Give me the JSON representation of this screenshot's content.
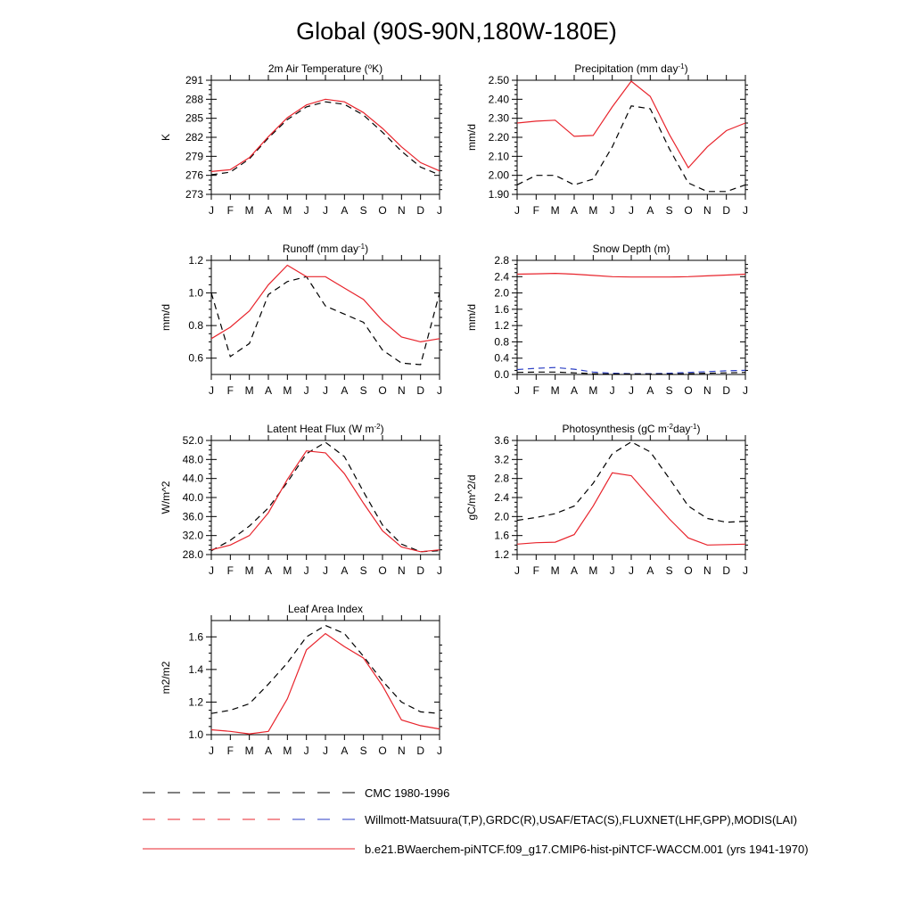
{
  "figure": {
    "title": "Global (90S-90N,180W-180E)"
  },
  "colors": {
    "model": "#e8242c",
    "obs": "#000000",
    "obs_alt": "#2b3ec4"
  },
  "legend": [
    {
      "label": "CMC 1980-1996",
      "style": "dashed-black"
    },
    {
      "label": "Willmott-Matsuura(T,P),GRDC(R),USAF/ETAC(S),FLUXNET(LHF,GPP),MODIS(LAI)",
      "style": "dashed-red-blue"
    },
    {
      "label": "b.e21.BWaerchem-piNTCF.f09_g17.CMIP6-hist-piNTCF-WACCM.001 (yrs 1941-1970)",
      "style": "solid-red"
    }
  ],
  "chart_data": [
    {
      "type": "line",
      "title": "2m Air Temperature (",
      "title_sup": "o",
      "title_after": "K)",
      "ylabel": "K",
      "x": [
        "J",
        "F",
        "M",
        "A",
        "M",
        "J",
        "J",
        "A",
        "S",
        "O",
        "N",
        "D",
        "J"
      ],
      "ylim": [
        273,
        291
      ],
      "yticks": [
        "273",
        "276",
        "279",
        "282",
        "285",
        "288",
        "291"
      ],
      "series": [
        {
          "role": "model",
          "values": [
            276.6,
            276.9,
            278.8,
            282.1,
            285.1,
            287.1,
            288.0,
            287.6,
            285.9,
            283.4,
            280.5,
            278.0,
            276.7
          ]
        },
        {
          "role": "obs",
          "values": [
            276.1,
            276.5,
            278.6,
            281.9,
            284.8,
            286.8,
            287.6,
            287.2,
            285.5,
            282.8,
            279.8,
            277.3,
            276.1
          ]
        }
      ]
    },
    {
      "type": "line",
      "title": "Precipitation (mm day",
      "title_sup": "-1",
      "title_after": ")",
      "ylabel": "mm/d",
      "x": [
        "J",
        "F",
        "M",
        "A",
        "M",
        "J",
        "J",
        "A",
        "S",
        "O",
        "N",
        "D",
        "J"
      ],
      "ylim": [
        1.9,
        2.5
      ],
      "yticks": [
        "1.90",
        "2.00",
        "2.10",
        "2.20",
        "2.30",
        "2.40",
        "2.50"
      ],
      "series": [
        {
          "role": "model",
          "values": [
            2.275,
            2.285,
            2.29,
            2.205,
            2.21,
            2.36,
            2.495,
            2.415,
            2.215,
            2.04,
            2.15,
            2.235,
            2.275
          ]
        },
        {
          "role": "obs",
          "values": [
            1.95,
            2.0,
            2.0,
            1.95,
            1.98,
            2.15,
            2.365,
            2.35,
            2.14,
            1.96,
            1.915,
            1.915,
            1.95
          ]
        }
      ]
    },
    {
      "type": "line",
      "title": "Runoff (mm day",
      "title_sup": "-1",
      "title_after": ")",
      "ylabel": "mm/d",
      "x": [
        "J",
        "F",
        "M",
        "A",
        "M",
        "J",
        "J",
        "A",
        "S",
        "O",
        "N",
        "D",
        "J"
      ],
      "ylim": [
        0.5,
        1.2
      ],
      "yticks": [
        "0.6",
        "0.8",
        "1.0",
        "1.2"
      ],
      "series": [
        {
          "role": "model",
          "values": [
            0.72,
            0.79,
            0.89,
            1.05,
            1.17,
            1.1,
            1.1,
            1.03,
            0.96,
            0.83,
            0.73,
            0.7,
            0.72
          ]
        },
        {
          "role": "obs",
          "values": [
            1.0,
            0.61,
            0.69,
            0.99,
            1.07,
            1.1,
            0.92,
            0.87,
            0.82,
            0.65,
            0.57,
            0.56,
            1.0
          ]
        }
      ]
    },
    {
      "type": "line",
      "title": "Snow Depth (m)",
      "title_sup": "",
      "title_after": "",
      "ylabel": "mm/d",
      "x": [
        "J",
        "F",
        "M",
        "A",
        "M",
        "J",
        "J",
        "A",
        "S",
        "O",
        "N",
        "D",
        "J"
      ],
      "ylim": [
        0,
        2.8
      ],
      "yticks": [
        "0.0",
        "0.4",
        "0.8",
        "1.2",
        "1.6",
        "2.0",
        "2.4",
        "2.8"
      ],
      "series": [
        {
          "role": "model",
          "values": [
            2.46,
            2.47,
            2.48,
            2.46,
            2.43,
            2.4,
            2.39,
            2.39,
            2.39,
            2.4,
            2.42,
            2.44,
            2.46
          ]
        },
        {
          "role": "obs_alt",
          "values": [
            0.12,
            0.15,
            0.17,
            0.13,
            0.06,
            0.03,
            0.02,
            0.02,
            0.03,
            0.05,
            0.07,
            0.09,
            0.1
          ]
        },
        {
          "role": "obs",
          "values": [
            0.05,
            0.06,
            0.06,
            0.04,
            0.02,
            0.01,
            0.01,
            0.01,
            0.01,
            0.02,
            0.03,
            0.04,
            0.05
          ]
        }
      ]
    },
    {
      "type": "line",
      "title": "Latent Heat Flux (W m",
      "title_sup": "-2",
      "title_after": ")",
      "ylabel": "W/m^2",
      "x": [
        "J",
        "F",
        "M",
        "A",
        "M",
        "J",
        "J",
        "A",
        "S",
        "O",
        "N",
        "D",
        "J"
      ],
      "ylim": [
        28,
        52
      ],
      "yticks": [
        "28.0",
        "32.0",
        "36.0",
        "40.0",
        "44.0",
        "48.0",
        "52.0"
      ],
      "series": [
        {
          "role": "model",
          "values": [
            29.0,
            30.0,
            32.0,
            36.8,
            43.8,
            49.8,
            49.4,
            45.0,
            38.8,
            33.0,
            29.6,
            28.6,
            29.0
          ]
        },
        {
          "role": "obs",
          "values": [
            28.8,
            31.0,
            34.0,
            37.8,
            43.2,
            49.2,
            51.6,
            48.6,
            41.2,
            34.2,
            30.2,
            28.6,
            28.8
          ]
        }
      ]
    },
    {
      "type": "line",
      "title": "Photosynthesis (gC m",
      "title_sup": "-2",
      "title_after": "day",
      "title_sup2": "-1",
      "title_end": ")",
      "ylabel": "gC/m^2/d",
      "x": [
        "J",
        "F",
        "M",
        "A",
        "M",
        "J",
        "J",
        "A",
        "S",
        "O",
        "N",
        "D",
        "J"
      ],
      "ylim": [
        1.2,
        3.6
      ],
      "yticks": [
        "1.2",
        "1.6",
        "2.0",
        "2.4",
        "2.8",
        "3.2",
        "3.6"
      ],
      "series": [
        {
          "role": "model",
          "values": [
            1.42,
            1.45,
            1.46,
            1.62,
            2.22,
            2.92,
            2.86,
            2.4,
            1.95,
            1.55,
            1.4,
            1.41,
            1.42
          ]
        },
        {
          "role": "obs",
          "values": [
            1.92,
            1.98,
            2.06,
            2.22,
            2.7,
            3.32,
            3.57,
            3.36,
            2.8,
            2.22,
            1.96,
            1.88,
            1.9
          ]
        }
      ]
    },
    {
      "type": "line",
      "title": "Leaf Area Index",
      "title_sup": "",
      "title_after": "",
      "ylabel": "m2/m2",
      "x": [
        "J",
        "F",
        "M",
        "A",
        "M",
        "J",
        "J",
        "A",
        "S",
        "O",
        "N",
        "D",
        "J"
      ],
      "ylim": [
        1.0,
        1.7
      ],
      "yticks": [
        "1.0",
        "1.2",
        "1.4",
        "1.6"
      ],
      "series": [
        {
          "role": "model",
          "values": [
            1.03,
            1.02,
            1.005,
            1.02,
            1.22,
            1.52,
            1.62,
            1.54,
            1.47,
            1.3,
            1.09,
            1.055,
            1.035
          ]
        },
        {
          "role": "obs",
          "values": [
            1.13,
            1.15,
            1.19,
            1.31,
            1.44,
            1.6,
            1.67,
            1.62,
            1.48,
            1.33,
            1.2,
            1.14,
            1.13
          ]
        }
      ]
    }
  ]
}
